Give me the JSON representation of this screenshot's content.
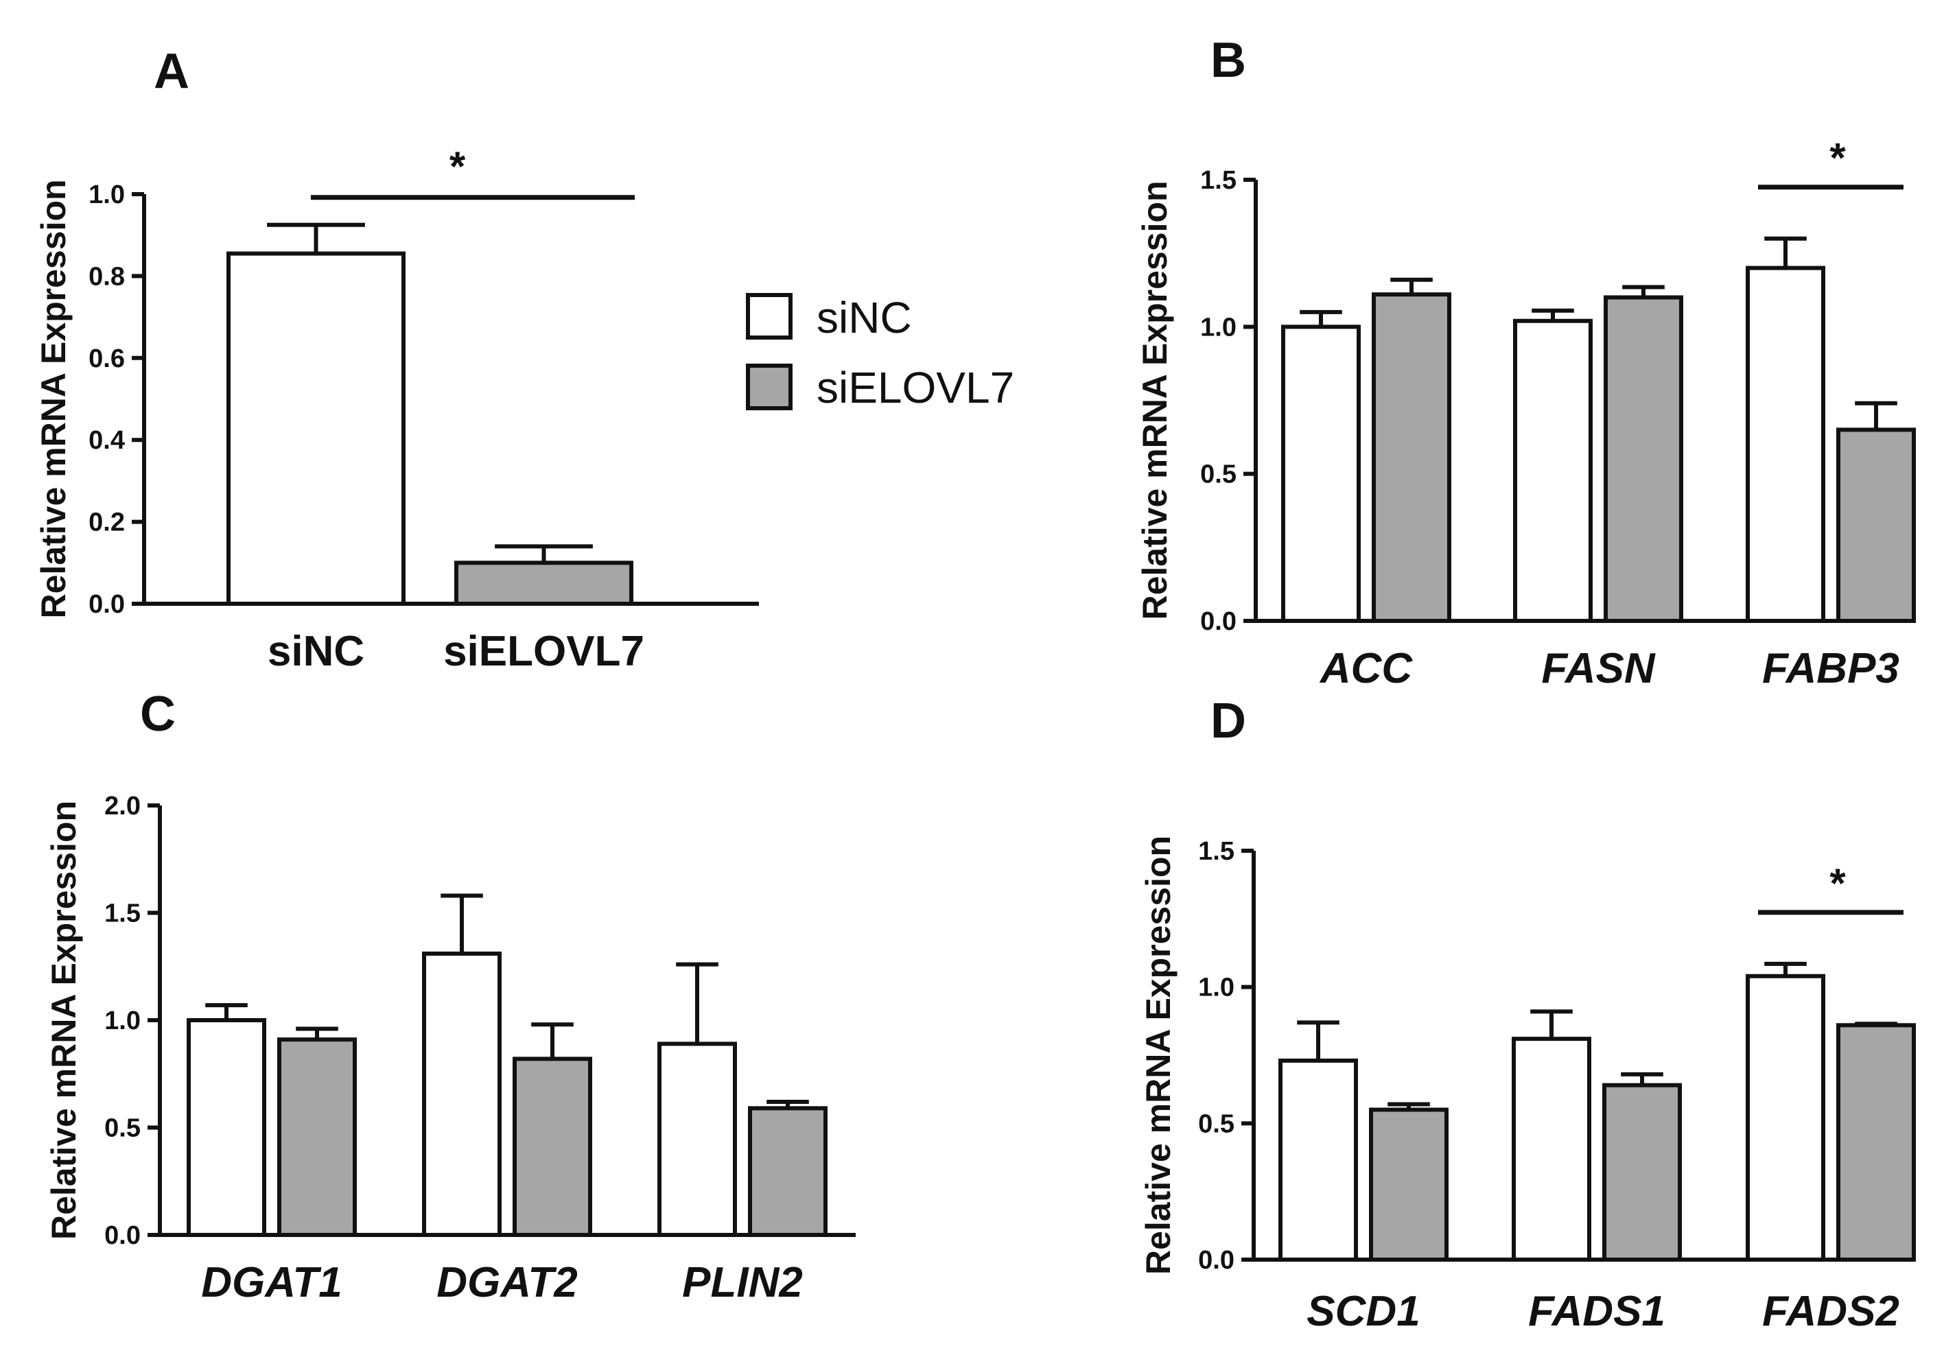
{
  "colors": {
    "siNC": "#ffffff",
    "siELOVL7": "#a6a6a6",
    "stroke": "#111111"
  },
  "legend": {
    "items": [
      {
        "label": "siNC",
        "color": "#ffffff"
      },
      {
        "label": "siELOVL7",
        "color": "#a6a6a6"
      }
    ]
  },
  "chart_data": [
    {
      "panel": "A",
      "type": "bar",
      "ylabel": "Relative mRNA Expression",
      "ylim": [
        0,
        1.0
      ],
      "yticks": [
        "0.0",
        "0.2",
        "0.4",
        "0.6",
        "0.8",
        "1.0"
      ],
      "categories": [
        "siNC",
        "siELOVL7"
      ],
      "italic_categories": false,
      "grouped": false,
      "bars": [
        {
          "category": "siNC",
          "value": 0.855,
          "error": 0.07,
          "color": "#ffffff"
        },
        {
          "category": "siELOVL7",
          "value": 0.1,
          "error": 0.04,
          "color": "#a6a6a6"
        }
      ],
      "significance": [
        {
          "between": [
            0,
            1
          ],
          "label": "*"
        }
      ]
    },
    {
      "panel": "B",
      "type": "bar",
      "ylabel": "Relative mRNA Expression",
      "ylim": [
        0,
        1.5
      ],
      "yticks": [
        "0.0",
        "0.5",
        "1.0",
        "1.5"
      ],
      "categories": [
        "ACC",
        "FASN",
        "FABP3"
      ],
      "italic_categories": true,
      "grouped": true,
      "series": [
        {
          "name": "siNC",
          "values": [
            1.0,
            1.02,
            1.2
          ],
          "errors": [
            0.05,
            0.035,
            0.1
          ]
        },
        {
          "name": "siELOVL7",
          "values": [
            1.11,
            1.1,
            0.65
          ],
          "errors": [
            0.05,
            0.035,
            0.09
          ]
        }
      ],
      "significance": [
        {
          "category": 2,
          "label": "*"
        }
      ]
    },
    {
      "panel": "C",
      "type": "bar",
      "ylabel": "Relative mRNA Expression",
      "ylim": [
        0,
        2.0
      ],
      "yticks": [
        "0.0",
        "0.5",
        "1.0",
        "1.5",
        "2.0"
      ],
      "categories": [
        "DGAT1",
        "DGAT2",
        "PLIN2"
      ],
      "italic_categories": true,
      "grouped": true,
      "series": [
        {
          "name": "siNC",
          "values": [
            1.0,
            1.31,
            0.89
          ],
          "errors": [
            0.07,
            0.27,
            0.37
          ]
        },
        {
          "name": "siELOVL7",
          "values": [
            0.91,
            0.82,
            0.59
          ],
          "errors": [
            0.05,
            0.16,
            0.03
          ]
        }
      ],
      "significance": []
    },
    {
      "panel": "D",
      "type": "bar",
      "ylabel": "Relative mRNA Expression",
      "ylim": [
        0,
        1.5
      ],
      "yticks": [
        "0.0",
        "0.5",
        "1.0",
        "1.5"
      ],
      "categories": [
        "SCD1",
        "FADS1",
        "FADS2"
      ],
      "italic_categories": true,
      "grouped": true,
      "series": [
        {
          "name": "siNC",
          "values": [
            0.73,
            0.81,
            1.04
          ],
          "errors": [
            0.14,
            0.1,
            0.045
          ]
        },
        {
          "name": "siELOVL7",
          "values": [
            0.55,
            0.64,
            0.86
          ],
          "errors": [
            0.02,
            0.04,
            0.005
          ]
        }
      ],
      "significance": [
        {
          "category": 2,
          "label": "*"
        }
      ]
    }
  ]
}
